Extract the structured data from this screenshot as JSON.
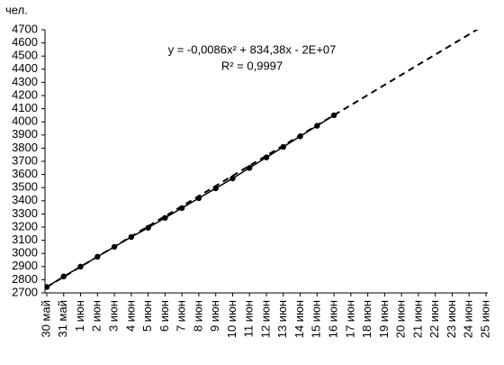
{
  "chart_data": {
    "type": "line",
    "ylabel": "чел.",
    "annotations": [
      "y = -0,0086x² + 834,38x - 2E+07",
      "R² = 0,9997"
    ],
    "categories": [
      "30 май",
      "31 май",
      "1 июн",
      "2 июн",
      "3 июн",
      "4 июн",
      "5 июн",
      "6 июн",
      "7 июн",
      "8 июн",
      "9 июн",
      "10 июн",
      "11 июн",
      "12 июн",
      "13 июн",
      "14 июн",
      "15 июн",
      "16 июн",
      "17 июн",
      "18 июн",
      "19 июн",
      "20 июн",
      "21 июн",
      "22 июн",
      "23 июн",
      "24 июн",
      "25 июн"
    ],
    "series": [
      {
        "color": "#000000",
        "markers": true,
        "line_style": "solid",
        "values": [
          2745,
          2825,
          2900,
          2975,
          3050,
          3125,
          3195,
          3270,
          3345,
          3420,
          3495,
          3570,
          3650,
          3730,
          3810,
          3890,
          3970,
          4050,
          null,
          null,
          null,
          null,
          null,
          null,
          null,
          null,
          null
        ]
      },
      {
        "color": "#000000",
        "markers": false,
        "line_style": "dashed",
        "values": [
          2745,
          2822,
          2899,
          2975,
          3052,
          3129,
          3206,
          3283,
          3359,
          3436,
          3513,
          3590,
          3667,
          3743,
          3820,
          3897,
          3974,
          4051,
          4127,
          4204,
          4281,
          4358,
          4435,
          4511,
          4588,
          4665,
          4742
        ]
      }
    ],
    "ylim": [
      2700,
      4700
    ],
    "yticks": [
      2700,
      2800,
      2900,
      3000,
      3100,
      3200,
      3300,
      3400,
      3500,
      3600,
      3700,
      3800,
      3900,
      4000,
      4100,
      4200,
      4300,
      4400,
      4500,
      4600,
      4700
    ],
    "grid": false
  }
}
